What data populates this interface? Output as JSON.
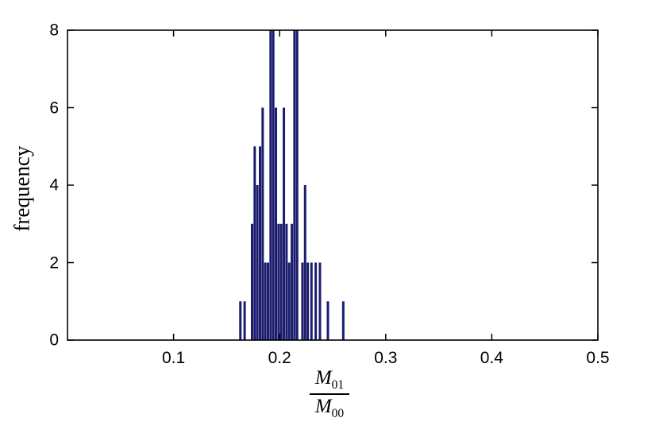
{
  "figure": {
    "background": "#ffffff",
    "axis_color": "#000000"
  },
  "axes": {
    "ylabel": "frequency",
    "xlabel": {
      "symbol": "M",
      "numerator_sub": "01",
      "denominator_sub": "00"
    }
  },
  "chart_data": {
    "type": "bar",
    "title": "",
    "xlabel": "M_01 / M_00",
    "ylabel": "frequency",
    "xlim": [
      0,
      0.5
    ],
    "ylim": [
      0,
      8
    ],
    "grid": false,
    "legend": "none",
    "bar_color": "#1c1c6e",
    "bar_width": 0.002,
    "x_ticks": [
      {
        "value": 0.1,
        "label": "0.1"
      },
      {
        "value": 0.2,
        "label": "0.2"
      },
      {
        "value": 0.3,
        "label": "0.3"
      },
      {
        "value": 0.4,
        "label": "0.4"
      },
      {
        "value": 0.5,
        "label": "0.5"
      }
    ],
    "y_ticks": [
      {
        "value": 0,
        "label": "0"
      },
      {
        "value": 2,
        "label": "2"
      },
      {
        "value": 4,
        "label": "4"
      },
      {
        "value": 6,
        "label": "6"
      },
      {
        "value": 8,
        "label": "8"
      }
    ],
    "bars": [
      {
        "x": 0.163,
        "h": 1
      },
      {
        "x": 0.167,
        "h": 1
      },
      {
        "x": 0.174,
        "h": 3
      },
      {
        "x": 0.1765,
        "h": 5
      },
      {
        "x": 0.179,
        "h": 4
      },
      {
        "x": 0.1815,
        "h": 5
      },
      {
        "x": 0.184,
        "h": 6
      },
      {
        "x": 0.1865,
        "h": 2
      },
      {
        "x": 0.189,
        "h": 2
      },
      {
        "x": 0.1915,
        "h": 8
      },
      {
        "x": 0.194,
        "h": 8
      },
      {
        "x": 0.1965,
        "h": 6
      },
      {
        "x": 0.199,
        "h": 3
      },
      {
        "x": 0.2015,
        "h": 3
      },
      {
        "x": 0.204,
        "h": 6
      },
      {
        "x": 0.2065,
        "h": 3
      },
      {
        "x": 0.209,
        "h": 2
      },
      {
        "x": 0.2115,
        "h": 3
      },
      {
        "x": 0.214,
        "h": 8
      },
      {
        "x": 0.2165,
        "h": 8
      },
      {
        "x": 0.2215,
        "h": 2
      },
      {
        "x": 0.224,
        "h": 4
      },
      {
        "x": 0.2265,
        "h": 2
      },
      {
        "x": 0.23,
        "h": 2
      },
      {
        "x": 0.234,
        "h": 2
      },
      {
        "x": 0.238,
        "h": 2
      },
      {
        "x": 0.2455,
        "h": 1
      },
      {
        "x": 0.26,
        "h": 1
      }
    ]
  }
}
